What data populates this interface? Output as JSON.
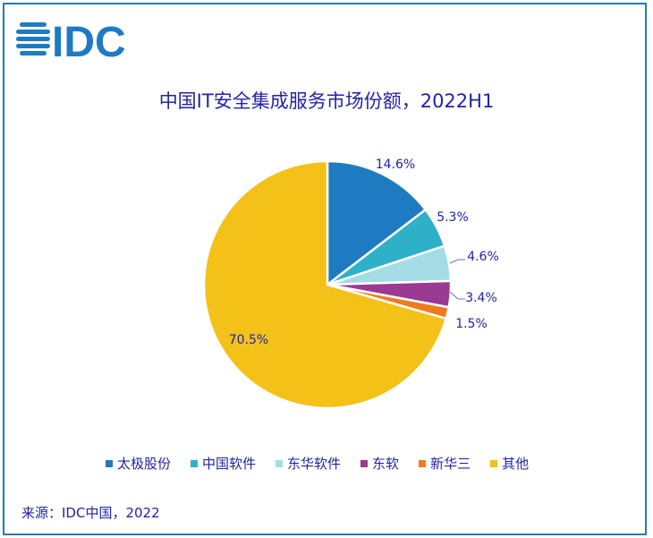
{
  "logo_text": "IDC",
  "source": "来源：IDC中国，2022",
  "chart_data": {
    "type": "pie",
    "title": "中国IT安全集成服务市场份额，2022H1",
    "labels": [
      "太极股份",
      "中国软件",
      "东华软件",
      "东软",
      "新华三",
      "其他"
    ],
    "values": [
      14.6,
      5.3,
      4.6,
      3.4,
      1.5,
      70.5
    ],
    "value_labels": [
      "14.6%",
      "5.3%",
      "4.6%",
      "3.4%",
      "1.5%",
      "70.5%"
    ],
    "colors": [
      "#1f7bc1",
      "#2fb0c9",
      "#a4dce6",
      "#9a3a92",
      "#f07b1f",
      "#f3c118"
    ],
    "legend_position": "bottom"
  }
}
